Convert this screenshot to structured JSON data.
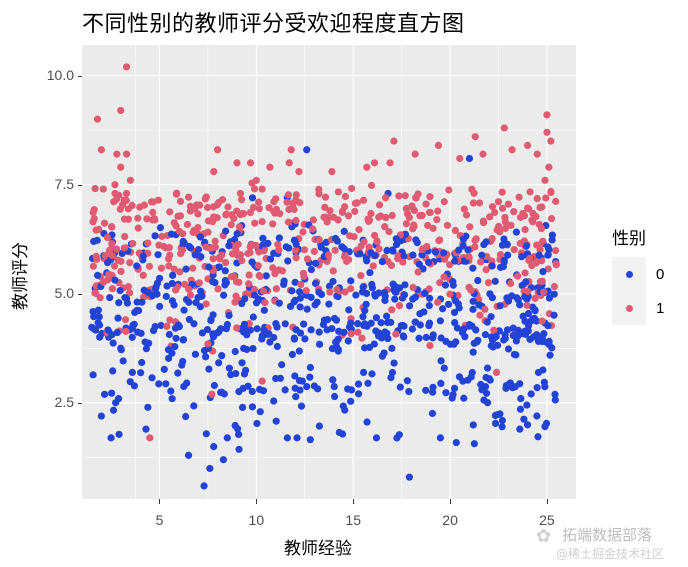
{
  "chart_data": {
    "type": "scatter",
    "title": "不同性别的教师评分受欢迎程度直方图",
    "xlabel": "教师经验",
    "ylabel": "教师评分",
    "xlim": [
      1.0,
      26.5
    ],
    "ylim": [
      0.3,
      10.7
    ],
    "x_ticks": [
      5,
      10,
      15,
      20,
      25
    ],
    "x_tick_labels": [
      "5",
      "10",
      "15",
      "20",
      "25"
    ],
    "y_ticks": [
      2.5,
      5.0,
      7.5,
      10.0
    ],
    "y_tick_labels": [
      "2.5",
      "5.0",
      "7.5",
      "10.0"
    ],
    "grid": true,
    "legend_position": "right",
    "legend": {
      "title": "性别",
      "entries": [
        {
          "label": "0",
          "color": "#2243d6"
        },
        {
          "label": "1",
          "color": "#e05a72"
        }
      ]
    },
    "series": [
      {
        "name": "0",
        "color": "#2243d6",
        "x_range": [
          1.5,
          25.5
        ],
        "description": "Male teachers: ratings concentrated between ~2.5 and ~6.3, dense bands near 3.5-4.5 and 5.0-6.2; sparse points down to ~0.7",
        "bands": [
          {
            "y_center": 6.0,
            "y_spread": 0.35,
            "count": 170
          },
          {
            "y_center": 5.0,
            "y_spread": 0.35,
            "count": 170
          },
          {
            "y_center": 4.1,
            "y_spread": 0.35,
            "count": 230
          },
          {
            "y_center": 3.0,
            "y_spread": 0.45,
            "count": 130
          },
          {
            "y_center": 2.0,
            "y_spread": 0.4,
            "count": 35
          }
        ],
        "points": [
          {
            "x": 2.0,
            "y": 2.2
          },
          {
            "x": 2.5,
            "y": 1.7
          },
          {
            "x": 4.3,
            "y": 1.9
          },
          {
            "x": 6.5,
            "y": 1.3
          },
          {
            "x": 7.3,
            "y": 0.6
          },
          {
            "x": 7.6,
            "y": 1.0
          },
          {
            "x": 7.8,
            "y": 1.5
          },
          {
            "x": 8.3,
            "y": 1.2
          },
          {
            "x": 8.5,
            "y": 1.7
          },
          {
            "x": 11.6,
            "y": 1.7
          },
          {
            "x": 12.1,
            "y": 1.7
          },
          {
            "x": 16.2,
            "y": 1.7
          },
          {
            "x": 17.9,
            "y": 0.8
          },
          {
            "x": 19.5,
            "y": 1.7
          },
          {
            "x": 22.7,
            "y": 2.1
          },
          {
            "x": 23.6,
            "y": 1.9
          },
          {
            "x": 24.0,
            "y": 2.0
          },
          {
            "x": 12.6,
            "y": 8.3
          },
          {
            "x": 11.6,
            "y": 7.2
          },
          {
            "x": 9.8,
            "y": 7.2
          },
          {
            "x": 16.8,
            "y": 7.3
          },
          {
            "x": 21.0,
            "y": 8.1
          },
          {
            "x": 12.0,
            "y": 6.6
          },
          {
            "x": 9.2,
            "y": 6.4
          },
          {
            "x": 3.6,
            "y": 3.2
          },
          {
            "x": 4.4,
            "y": 2.4
          },
          {
            "x": 10.2,
            "y": 2.3
          }
        ]
      },
      {
        "name": "1",
        "color": "#e05a72",
        "x_range": [
          1.5,
          25.5
        ],
        "description": "Female teachers: ratings concentrated between ~4.0 and ~7.5, dense bands near 5.0-6.3 and 6.5-7.2; outliers up to ~10.2",
        "bands": [
          {
            "y_center": 6.9,
            "y_spread": 0.4,
            "count": 230
          },
          {
            "y_center": 5.9,
            "y_spread": 0.35,
            "count": 200
          },
          {
            "y_center": 5.1,
            "y_spread": 0.3,
            "count": 110
          },
          {
            "y_center": 4.2,
            "y_spread": 0.3,
            "count": 30
          }
        ],
        "points": [
          {
            "x": 3.3,
            "y": 10.2
          },
          {
            "x": 1.8,
            "y": 9.0
          },
          {
            "x": 3.0,
            "y": 9.2
          },
          {
            "x": 2.0,
            "y": 8.3
          },
          {
            "x": 2.8,
            "y": 8.2
          },
          {
            "x": 3.3,
            "y": 8.2
          },
          {
            "x": 3.0,
            "y": 7.9
          },
          {
            "x": 3.5,
            "y": 7.6
          },
          {
            "x": 2.7,
            "y": 7.5
          },
          {
            "x": 2.1,
            "y": 7.4
          },
          {
            "x": 3.3,
            "y": 7.3
          },
          {
            "x": 9.7,
            "y": 8.0
          },
          {
            "x": 10.0,
            "y": 7.6
          },
          {
            "x": 10.3,
            "y": 7.4
          },
          {
            "x": 11.8,
            "y": 8.3
          },
          {
            "x": 11.7,
            "y": 8.0
          },
          {
            "x": 10.7,
            "y": 7.9
          },
          {
            "x": 12.2,
            "y": 7.8
          },
          {
            "x": 15.7,
            "y": 7.9
          },
          {
            "x": 16.1,
            "y": 8.0
          },
          {
            "x": 13.9,
            "y": 7.8
          },
          {
            "x": 19.4,
            "y": 8.4
          },
          {
            "x": 20.5,
            "y": 8.1
          },
          {
            "x": 21.7,
            "y": 8.2
          },
          {
            "x": 22.8,
            "y": 8.8
          },
          {
            "x": 25.0,
            "y": 9.1
          },
          {
            "x": 25.0,
            "y": 8.7
          },
          {
            "x": 24.0,
            "y": 8.4
          },
          {
            "x": 24.5,
            "y": 8.2
          },
          {
            "x": 25.2,
            "y": 8.5
          },
          {
            "x": 23.2,
            "y": 8.3
          },
          {
            "x": 17.1,
            "y": 8.5
          },
          {
            "x": 18.2,
            "y": 8.2
          },
          {
            "x": 16.9,
            "y": 8.0
          },
          {
            "x": 21.3,
            "y": 8.6
          },
          {
            "x": 24.9,
            "y": 7.6
          },
          {
            "x": 25.1,
            "y": 7.9
          },
          {
            "x": 8.0,
            "y": 8.3
          },
          {
            "x": 7.8,
            "y": 7.8
          },
          {
            "x": 9.0,
            "y": 8.0
          },
          {
            "x": 4.5,
            "y": 1.7
          },
          {
            "x": 10.3,
            "y": 3.0
          },
          {
            "x": 7.7,
            "y": 2.7
          },
          {
            "x": 5.6,
            "y": 3.8
          },
          {
            "x": 22.4,
            "y": 3.2
          }
        ]
      }
    ]
  },
  "legend": {
    "title": "性别",
    "items": [
      {
        "label": "0",
        "color": "#2243d6"
      },
      {
        "label": "1",
        "color": "#e05a72"
      }
    ]
  },
  "watermark": {
    "line1": "拓端数据部落",
    "line2": "@稀土掘金技术社区"
  },
  "colors": {
    "panel_bg": "#ebebeb",
    "grid_major": "#ffffff",
    "male": "#2243d6",
    "female": "#e05a72"
  }
}
